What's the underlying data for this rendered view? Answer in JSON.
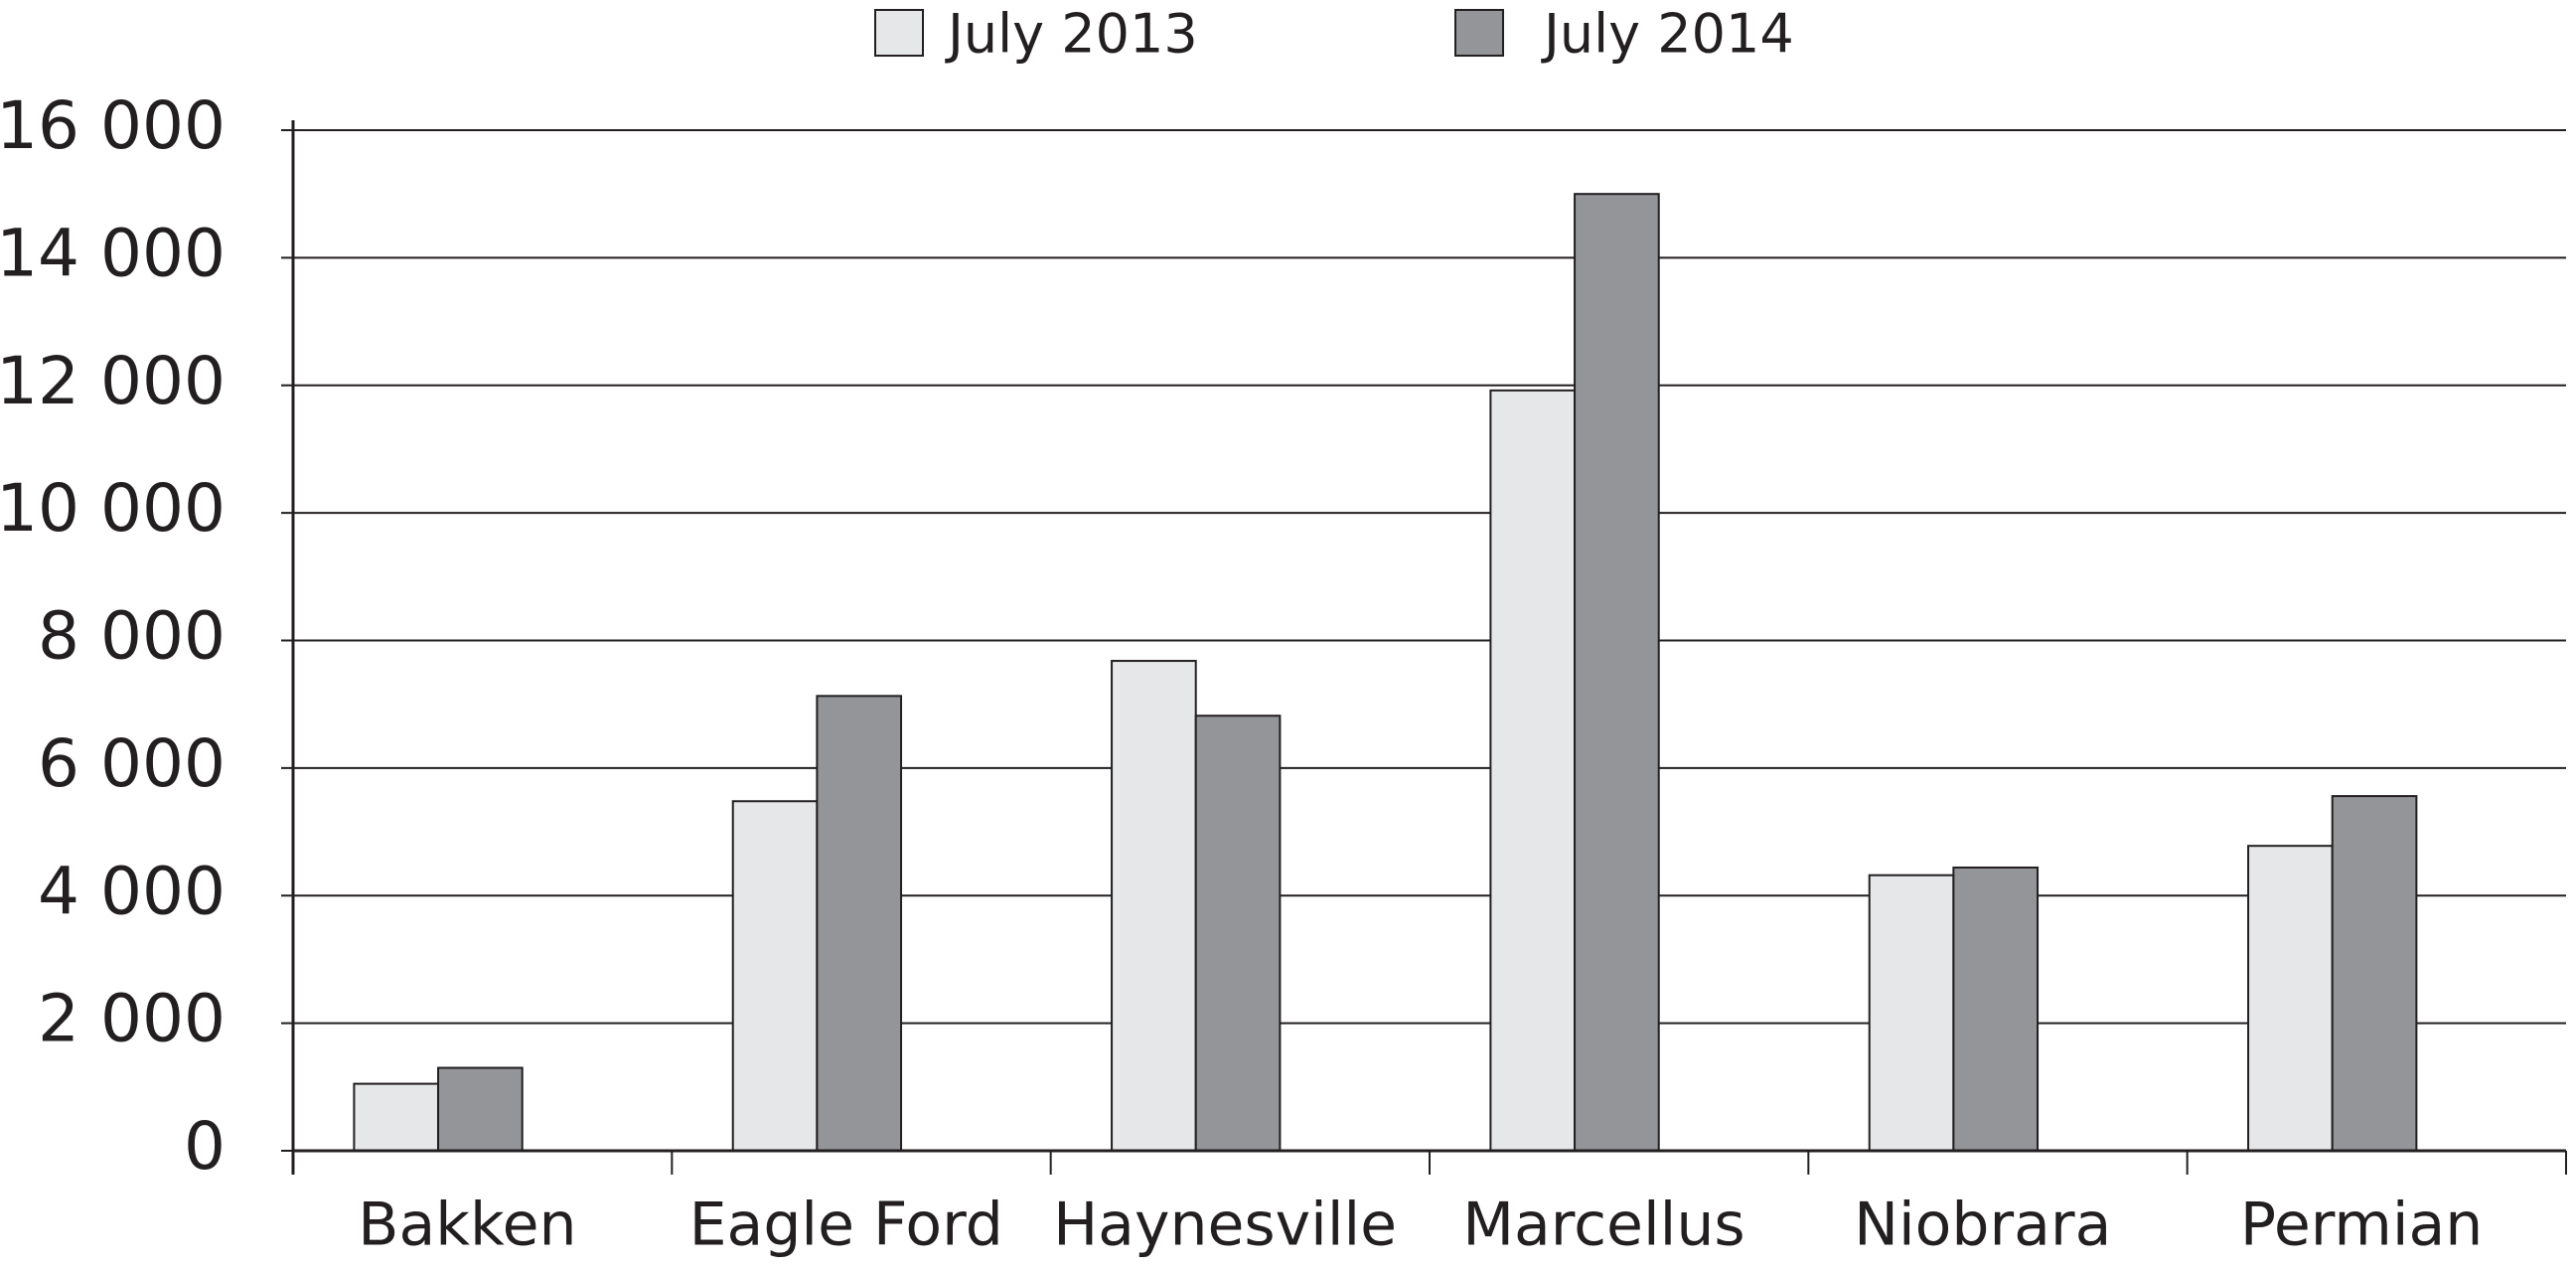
{
  "chart_data": {
    "type": "bar",
    "categories": [
      "Bakken",
      "Eagle Ford",
      "Haynesville",
      "Marcellus",
      "Niobrara",
      "Permian"
    ],
    "series": [
      {
        "name": "July 2013",
        "color": "#e6e7e9",
        "values": [
          1050,
          5480,
          7680,
          11920,
          4320,
          4780
        ]
      },
      {
        "name": "July 2014",
        "color": "#939598",
        "values": [
          1300,
          7130,
          6820,
          15000,
          4440,
          5560
        ]
      }
    ],
    "ylim": [
      0,
      16000
    ],
    "yticks": [
      0,
      {
        "value": 2000,
        "label": "2 000"
      },
      {
        "value": 4000,
        "label": "4 000"
      },
      {
        "value": 6000,
        "label": "6 000"
      },
      {
        "value": 8000,
        "label": "8 000"
      },
      {
        "value": 10000,
        "label": "10 000"
      },
      {
        "value": 12000,
        "label": "12 000"
      },
      {
        "value": 14000,
        "label": "14 000"
      },
      {
        "value": 16000,
        "label": "16 000"
      }
    ],
    "grid": true,
    "legend": "top"
  }
}
